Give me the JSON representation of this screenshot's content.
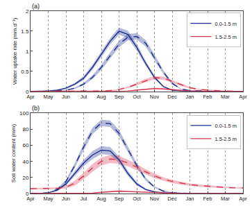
{
  "chart_data": [
    {
      "type": "line",
      "title": "(a)",
      "ylabel": "Water uptake rate (mm.d⁻¹)",
      "x": [
        0,
        0.5,
        1,
        1.5,
        2,
        2.5,
        3,
        3.5,
        4,
        4.5,
        5,
        5.5,
        6,
        6.5,
        7,
        7.5,
        8,
        8.5,
        9,
        9.5,
        10,
        10.5,
        11,
        11.5,
        12
      ],
      "xlim": [
        0,
        12
      ],
      "xticks": [
        {
          "value": 0,
          "label": "Apr"
        },
        {
          "value": 1,
          "label": "May"
        },
        {
          "value": 2,
          "label": "Jun"
        },
        {
          "value": 3,
          "label": "Jul"
        },
        {
          "value": 4,
          "label": "Aug"
        },
        {
          "value": 5,
          "label": "Sep"
        },
        {
          "value": 6,
          "label": "Oct"
        },
        {
          "value": 7,
          "label": "Nov"
        },
        {
          "value": 8,
          "label": "Dec"
        },
        {
          "value": 9,
          "label": "Jan"
        },
        {
          "value": 10,
          "label": "Feb"
        },
        {
          "value": 11,
          "label": "Mar"
        },
        {
          "value": 12,
          "label": "Apr"
        }
      ],
      "ylim": [
        0,
        2
      ],
      "yticks": [
        0,
        0.5,
        1,
        1.5,
        2
      ],
      "grid": true,
      "legend": "upper right",
      "series": [
        {
          "name": "0.0-1.5 m",
          "color": "#1c2f8f",
          "line_style": "solid",
          "values": [
            0,
            0,
            0.01,
            0.03,
            0.08,
            0.18,
            0.33,
            0.6,
            0.92,
            1.25,
            1.5,
            1.42,
            1.1,
            0.7,
            0.35,
            0.12,
            0.03,
            0.01,
            0,
            0,
            0,
            0,
            0,
            0,
            0
          ],
          "lower": [
            0,
            0,
            0.01,
            0.02,
            0.06,
            0.15,
            0.28,
            0.54,
            0.85,
            1.17,
            1.41,
            1.33,
            1.02,
            0.64,
            0.31,
            0.1,
            0.02,
            0,
            0,
            0,
            0,
            0,
            0,
            0,
            0
          ],
          "upper": [
            0,
            0,
            0.01,
            0.04,
            0.1,
            0.21,
            0.38,
            0.66,
            0.99,
            1.33,
            1.59,
            1.51,
            1.18,
            0.76,
            0.39,
            0.14,
            0.04,
            0.01,
            0,
            0,
            0,
            0,
            0,
            0,
            0
          ]
        },
        {
          "name": "0.0-1.5 m",
          "color": "#1c2f8f",
          "line_style": "dash",
          "values": [
            0,
            0,
            0,
            0.01,
            0.03,
            0.08,
            0.18,
            0.35,
            0.6,
            0.9,
            1.18,
            1.35,
            1.37,
            1.2,
            0.85,
            0.48,
            0.2,
            0.06,
            0.02,
            0.01,
            0,
            0,
            0,
            0,
            0
          ],
          "lower": [
            0,
            0,
            0,
            0.01,
            0.02,
            0.06,
            0.15,
            0.3,
            0.54,
            0.83,
            1.1,
            1.27,
            1.29,
            1.12,
            0.78,
            0.43,
            0.17,
            0.05,
            0.01,
            0,
            0,
            0,
            0,
            0,
            0
          ],
          "upper": [
            0,
            0,
            0,
            0.02,
            0.04,
            0.1,
            0.21,
            0.4,
            0.66,
            0.97,
            1.26,
            1.43,
            1.45,
            1.28,
            0.92,
            0.53,
            0.23,
            0.07,
            0.03,
            0.01,
            0,
            0,
            0,
            0,
            0
          ]
        },
        {
          "name": "1.5-2.5 m",
          "color": "#d6344f",
          "line_style": "solid",
          "values": [
            0,
            0,
            0,
            0,
            0,
            0,
            0,
            0,
            0,
            0,
            0,
            0.01,
            0.03,
            0.05,
            0.07,
            0.06,
            0.04,
            0.02,
            0.01,
            0.01,
            0,
            0,
            0,
            0,
            0
          ],
          "lower": [
            0,
            0,
            0,
            0,
            0,
            0,
            0,
            0,
            0,
            0,
            0,
            0.01,
            0.02,
            0.04,
            0.05,
            0.05,
            0.03,
            0.01,
            0.01,
            0,
            0,
            0,
            0,
            0,
            0
          ],
          "upper": [
            0,
            0,
            0,
            0,
            0,
            0,
            0,
            0,
            0,
            0,
            0,
            0.02,
            0.04,
            0.06,
            0.09,
            0.08,
            0.05,
            0.03,
            0.02,
            0.01,
            0,
            0,
            0,
            0,
            0
          ]
        },
        {
          "name": "1.5-2.5 m",
          "color": "#d6344f",
          "line_style": "dash",
          "values": [
            0,
            0,
            0,
            0,
            0,
            0,
            0,
            0,
            0.01,
            0.02,
            0.05,
            0.1,
            0.18,
            0.27,
            0.34,
            0.33,
            0.25,
            0.16,
            0.09,
            0.05,
            0.03,
            0.02,
            0.01,
            0.01,
            0
          ],
          "lower": [
            0,
            0,
            0,
            0,
            0,
            0,
            0,
            0,
            0.01,
            0.01,
            0.04,
            0.08,
            0.15,
            0.23,
            0.3,
            0.29,
            0.22,
            0.13,
            0.07,
            0.04,
            0.02,
            0.01,
            0.01,
            0,
            0
          ],
          "upper": [
            0,
            0,
            0,
            0,
            0,
            0,
            0,
            0,
            0.01,
            0.03,
            0.06,
            0.12,
            0.21,
            0.31,
            0.38,
            0.37,
            0.28,
            0.19,
            0.11,
            0.06,
            0.04,
            0.03,
            0.02,
            0.01,
            0
          ]
        }
      ]
    },
    {
      "type": "line",
      "title": "(b)",
      "ylabel": "Soil water content (mm)",
      "x": [
        0,
        0.5,
        1,
        1.5,
        2,
        2.5,
        3,
        3.5,
        4,
        4.5,
        5,
        5.5,
        6,
        6.5,
        7,
        7.5,
        8,
        8.5,
        9,
        9.5,
        10,
        10.5,
        11,
        11.5,
        12
      ],
      "xlim": [
        0,
        12
      ],
      "xticks": [
        {
          "value": 0,
          "label": "Apr"
        },
        {
          "value": 1,
          "label": "May"
        },
        {
          "value": 2,
          "label": "Jun"
        },
        {
          "value": 3,
          "label": "Jul"
        },
        {
          "value": 4,
          "label": "Aug"
        },
        {
          "value": 5,
          "label": "Sep"
        },
        {
          "value": 6,
          "label": "Oct"
        },
        {
          "value": 7,
          "label": "Nov"
        },
        {
          "value": 8,
          "label": "Dec"
        },
        {
          "value": 9,
          "label": "Jan"
        },
        {
          "value": 10,
          "label": "Feb"
        },
        {
          "value": 11,
          "label": "Mar"
        },
        {
          "value": 12,
          "label": "Apr"
        }
      ],
      "ylim": [
        0,
        100
      ],
      "yticks": [
        0,
        20,
        40,
        60,
        80,
        100
      ],
      "grid": true,
      "legend": "upper right",
      "series": [
        {
          "name": "0.0-1.5 m",
          "color": "#1c2f8f",
          "line_style": "solid",
          "values": [
            0,
            0,
            1,
            4,
            12,
            25,
            38,
            48,
            54,
            53,
            42,
            25,
            12,
            5,
            2,
            1,
            0.5,
            0,
            0,
            0,
            0,
            0,
            0,
            0,
            0
          ],
          "lower": [
            0,
            0,
            1,
            3,
            10,
            22,
            34,
            43,
            49,
            48,
            38,
            22,
            10,
            4,
            1.5,
            0.5,
            0,
            0,
            0,
            0,
            0,
            0,
            0,
            0,
            0
          ],
          "upper": [
            0,
            0,
            1,
            5,
            14,
            28,
            42,
            53,
            59,
            58,
            46,
            28,
            14,
            6,
            2.5,
            1.5,
            1,
            0,
            0,
            0,
            0,
            0,
            0,
            0,
            0
          ]
        },
        {
          "name": "0.0-1.5 m",
          "color": "#1c2f8f",
          "line_style": "dash",
          "values": [
            0,
            0,
            1,
            5,
            15,
            35,
            58,
            78,
            88,
            87,
            75,
            55,
            35,
            18,
            8,
            3,
            1,
            0.5,
            0,
            0,
            0,
            0,
            0,
            0,
            0
          ],
          "lower": [
            0,
            0,
            1,
            4,
            13,
            32,
            54,
            74,
            84,
            83,
            71,
            51,
            32,
            16,
            7,
            2,
            0.5,
            0,
            0,
            0,
            0,
            0,
            0,
            0,
            0
          ],
          "upper": [
            0,
            0,
            1,
            6,
            17,
            38,
            62,
            82,
            92,
            91,
            79,
            59,
            38,
            20,
            9,
            4,
            1.5,
            1,
            0,
            0,
            0,
            0,
            0,
            0,
            0
          ]
        },
        {
          "name": "1.5-2.5 m",
          "color": "#d6344f",
          "line_style": "solid",
          "values": [
            0,
            0,
            0,
            0,
            0,
            0,
            0,
            0.5,
            1.5,
            2.5,
            3,
            2.5,
            2,
            1.5,
            1,
            0.5,
            0.3,
            0,
            0,
            0,
            0,
            0,
            0,
            0,
            0
          ],
          "lower": [
            0,
            0,
            0,
            0,
            0,
            0,
            0,
            0.2,
            1,
            1.8,
            2.2,
            1.8,
            1.4,
            1,
            0.6,
            0.3,
            0.1,
            0,
            0,
            0,
            0,
            0,
            0,
            0,
            0
          ],
          "upper": [
            0,
            0,
            0,
            0,
            0,
            0,
            0,
            0.8,
            2,
            3.2,
            3.8,
            3.2,
            2.6,
            2,
            1.4,
            0.8,
            0.5,
            0,
            0,
            0,
            0,
            0,
            0,
            0,
            0
          ]
        },
        {
          "name": "1.5-2.5 m",
          "color": "#d6344f",
          "line_style": "dash",
          "values": [
            6,
            6,
            6,
            6.5,
            8,
            13,
            22,
            32,
            40,
            43,
            42,
            38,
            33,
            27,
            22,
            18,
            15,
            13,
            11,
            10,
            9,
            8,
            7.5,
            7,
            7
          ],
          "lower": [
            5,
            5,
            5,
            5.5,
            6.5,
            10,
            18,
            27,
            35,
            38,
            37,
            34,
            29,
            24,
            19,
            16,
            13,
            11,
            9.5,
            8.5,
            7.5,
            7,
            6.5,
            6,
            6
          ],
          "upper": [
            7,
            7,
            7,
            7.5,
            9.5,
            16,
            26,
            37,
            45,
            48,
            47,
            42,
            37,
            30,
            25,
            20,
            17,
            15,
            12.5,
            11.5,
            10.5,
            9,
            8.5,
            8,
            8
          ]
        }
      ]
    }
  ]
}
